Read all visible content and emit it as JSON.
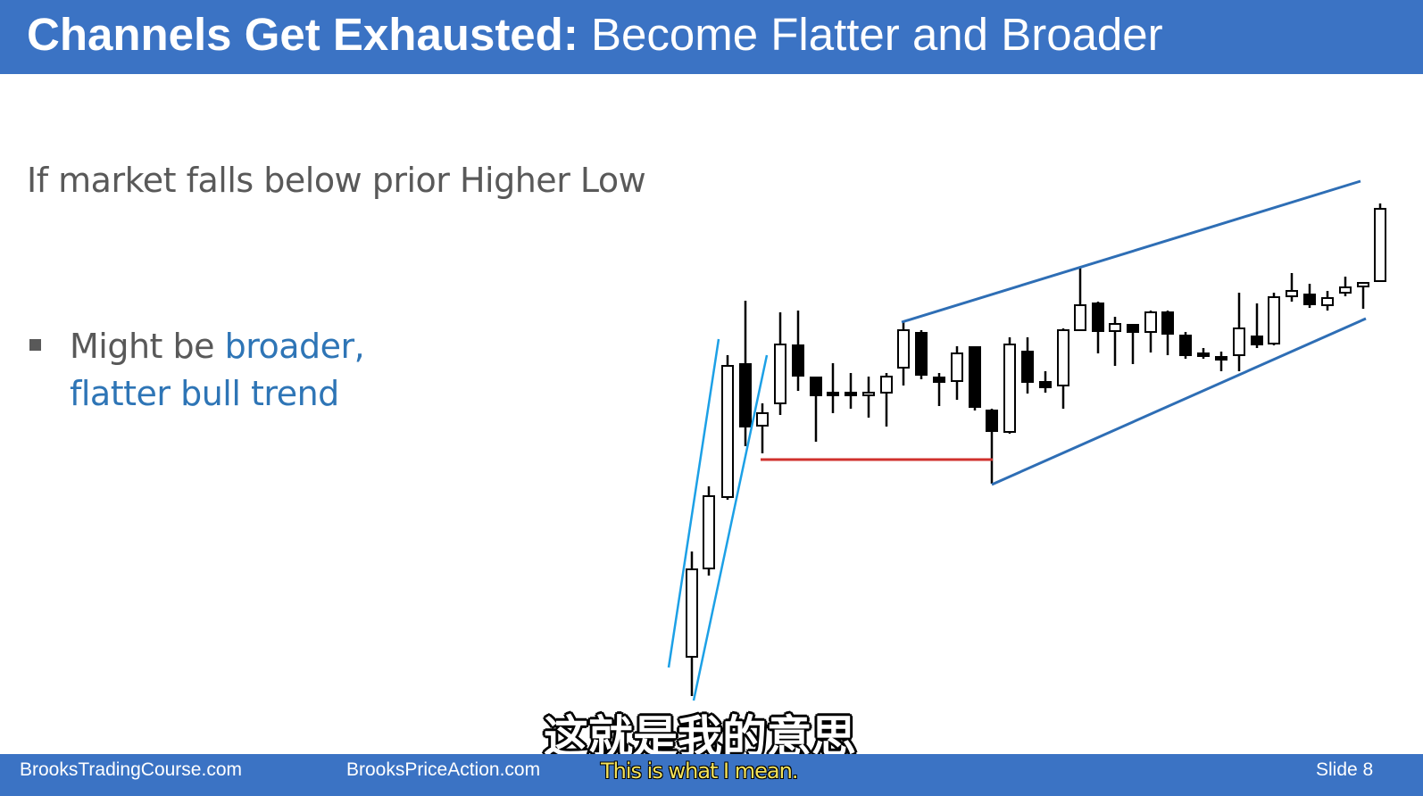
{
  "slide": {
    "title_bold": "Channels Get Exhausted:",
    "title_rest": " Become Flatter and Broader",
    "subheading": "If market falls below prior Higher Low",
    "bullet": {
      "plain": "Might be ",
      "accent_line1": "broader,",
      "accent_line2": "flatter bull trend"
    }
  },
  "footer": {
    "left_site": "BrooksTradingCourse.com",
    "mid_site": "BrooksPriceAction.com",
    "slide_number": "Slide  8"
  },
  "subtitles": {
    "chinese": "这就是我的意思",
    "english": "This is what I mean."
  },
  "colors": {
    "header_bg": "#3b73c4",
    "accent_text": "#2e75b6",
    "trendline": "#2e6eb5",
    "spike_line": "#1ca0e6",
    "support_line": "#d0312d"
  }
}
